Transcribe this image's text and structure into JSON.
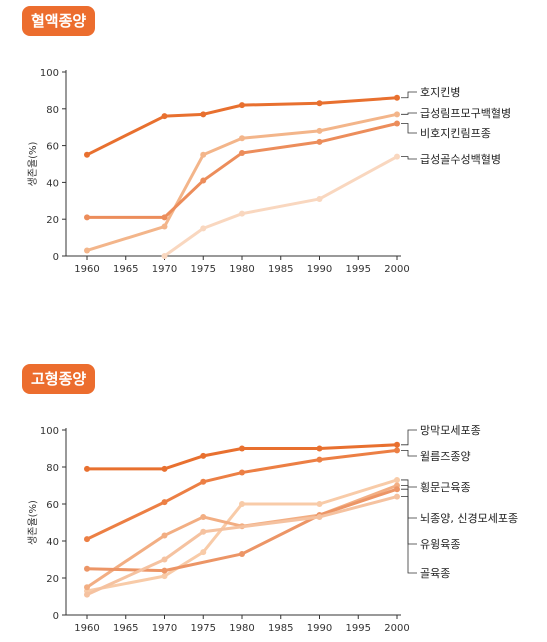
{
  "charts": [
    {
      "badge": "혈액종양",
      "chart_data": {
        "type": "line",
        "title": "혈액종양",
        "ylabel": "생존율(%)",
        "xlabel": "",
        "x": [
          1960,
          1965,
          1970,
          1975,
          1980,
          1985,
          1990,
          1995,
          2000
        ],
        "x_ticks": [
          "1960",
          "1965",
          "1970",
          "1975",
          "1980",
          "1985",
          "1990",
          "1995",
          "2000"
        ],
        "y_ticks": [
          "0",
          "20",
          "40",
          "60",
          "80",
          "100"
        ],
        "ylim": [
          0,
          100
        ],
        "xlim": [
          1960,
          2000
        ],
        "grid": false,
        "legend": "right (labels at line ends)",
        "series": [
          {
            "name": "호지킨병",
            "color": "#e8702f",
            "points": [
              [
                1960,
                55
              ],
              [
                1970,
                76
              ],
              [
                1975,
                77
              ],
              [
                1980,
                82
              ],
              [
                1990,
                83
              ],
              [
                2000,
                86
              ]
            ]
          },
          {
            "name": "급성림프모구백혈병",
            "color": "#f3b58a",
            "points": [
              [
                1960,
                3
              ],
              [
                1970,
                16
              ],
              [
                1975,
                55
              ],
              [
                1980,
                64
              ],
              [
                1990,
                68
              ],
              [
                2000,
                77
              ]
            ]
          },
          {
            "name": "비호지킨림프종",
            "color": "#ec8d5b",
            "points": [
              [
                1960,
                21
              ],
              [
                1970,
                21
              ],
              [
                1975,
                41
              ],
              [
                1980,
                56
              ],
              [
                1990,
                62
              ],
              [
                2000,
                72
              ]
            ]
          },
          {
            "name": "급성골수성백혈병",
            "color": "#f9d7bf",
            "points": [
              [
                1970,
                0
              ],
              [
                1975,
                15
              ],
              [
                1980,
                23
              ],
              [
                1990,
                31
              ],
              [
                2000,
                54
              ]
            ]
          }
        ]
      }
    },
    {
      "badge": "고형종양",
      "chart_data": {
        "type": "line",
        "title": "고형종양",
        "ylabel": "생존율(%)",
        "xlabel": "",
        "x": [
          1960,
          1965,
          1970,
          1975,
          1980,
          1985,
          1990,
          1995,
          2000
        ],
        "x_ticks": [
          "1960",
          "1965",
          "1970",
          "1975",
          "1980",
          "1985",
          "1990",
          "1995",
          "2000"
        ],
        "y_ticks": [
          "0",
          "20",
          "40",
          "60",
          "80",
          "100"
        ],
        "ylim": [
          0,
          100
        ],
        "xlim": [
          1960,
          2000
        ],
        "grid": false,
        "legend": "right (labels at line ends)",
        "series": [
          {
            "name": "망막모세포종",
            "color": "#e8702f",
            "points": [
              [
                1960,
                79
              ],
              [
                1970,
                79
              ],
              [
                1975,
                86
              ],
              [
                1980,
                90
              ],
              [
                1990,
                90
              ],
              [
                2000,
                92
              ]
            ]
          },
          {
            "name": "윌름즈종양",
            "color": "#ec7f44",
            "points": [
              [
                1960,
                41
              ],
              [
                1970,
                61
              ],
              [
                1975,
                72
              ],
              [
                1980,
                77
              ],
              [
                1990,
                84
              ],
              [
                2000,
                89
              ]
            ]
          },
          {
            "name": "횡문근육종",
            "color": "#f8cba8",
            "points": [
              [
                1960,
                13
              ],
              [
                1970,
                21
              ],
              [
                1975,
                34
              ],
              [
                1980,
                60
              ],
              [
                1990,
                60
              ],
              [
                2000,
                73
              ]
            ]
          },
          {
            "name": "뇌종양, 신경모세포종",
            "color": "#f2ae83",
            "points": [
              [
                1960,
                15
              ],
              [
                1970,
                43
              ],
              [
                1975,
                53
              ],
              [
                1980,
                48
              ],
              [
                1990,
                54
              ],
              [
                2000,
                70
              ]
            ]
          },
          {
            "name": "유윙육종",
            "color": "#ec9566",
            "points": [
              [
                1960,
                25
              ],
              [
                1970,
                24
              ],
              [
                1980,
                33
              ],
              [
                1990,
                54
              ],
              [
                2000,
                68
              ]
            ]
          },
          {
            "name": "골육종",
            "color": "#f5c2a0",
            "points": [
              [
                1960,
                11
              ],
              [
                1970,
                30
              ],
              [
                1975,
                45
              ],
              [
                1990,
                53
              ],
              [
                2000,
                64
              ]
            ]
          }
        ]
      }
    }
  ]
}
